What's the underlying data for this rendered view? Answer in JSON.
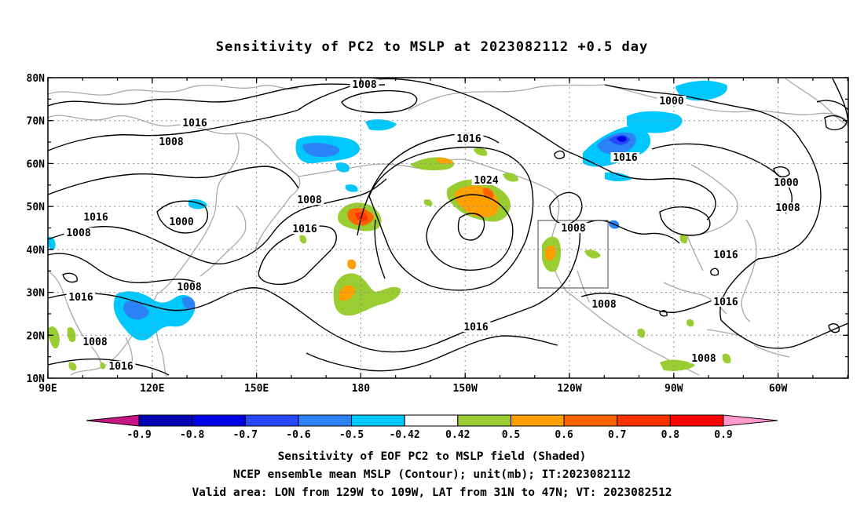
{
  "title": "Sensitivity of PC2 to MSLP at 2023082112 +0.5 day",
  "lat_labels": [
    "80N",
    "70N",
    "60N",
    "50N",
    "40N",
    "30N",
    "20N",
    "10N"
  ],
  "lon_labels": [
    "90E",
    "120E",
    "150E",
    "180",
    "150W",
    "120W",
    "90W",
    "60W"
  ],
  "colorbar": {
    "labels": [
      "-0.9",
      "-0.8",
      "-0.7",
      "-0.6",
      "-0.5",
      "-0.42",
      "0.42",
      "0.5",
      "0.6",
      "0.7",
      "0.8",
      "0.9"
    ],
    "colors": [
      "#c71585",
      "#0000b4",
      "#0000e6",
      "#2848ff",
      "#2b83f5",
      "#00c8ff",
      "#ffffff",
      "#9acd32",
      "#ffa000",
      "#ff6400",
      "#ff3200",
      "#ff0000",
      "#ff99cc"
    ]
  },
  "contour_labels": [
    {
      "text": "1008"
    },
    {
      "text": "1016"
    },
    {
      "text": "1008"
    },
    {
      "text": "1016"
    },
    {
      "text": "1008"
    },
    {
      "text": "1000"
    },
    {
      "text": "1008"
    },
    {
      "text": "1016"
    },
    {
      "text": "1016"
    },
    {
      "text": "1024"
    },
    {
      "text": "1008"
    },
    {
      "text": "1008"
    },
    {
      "text": "1016"
    },
    {
      "text": "1016"
    },
    {
      "text": "1008"
    },
    {
      "text": "1016"
    },
    {
      "text": "1000"
    },
    {
      "text": "1016"
    },
    {
      "text": "1000"
    },
    {
      "text": "1008"
    },
    {
      "text": "1016"
    },
    {
      "text": "1016"
    },
    {
      "text": "1008"
    },
    {
      "text": "1008"
    },
    {
      "text": "1008"
    }
  ],
  "footer": [
    "Sensitivity of EOF PC2 to MSLP field (Shaded)",
    "NCEP ensemble mean MSLP (Contour); unit(mb); IT:2023082112",
    "Valid area: LON from 129W to 109W, LAT from 31N to 47N; VT: 2023082512"
  ]
}
